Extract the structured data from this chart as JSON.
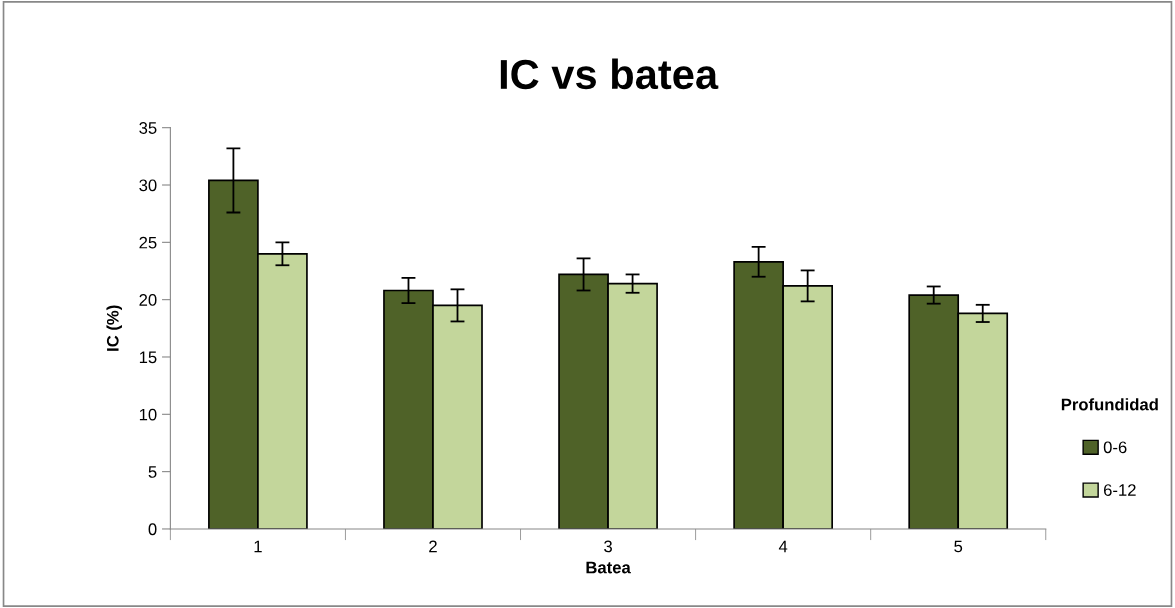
{
  "chart_data": {
    "type": "bar",
    "title": "IC vs batea",
    "xlabel": "Batea",
    "ylabel": "IC (%)",
    "categories": [
      "1",
      "2",
      "3",
      "4",
      "5"
    ],
    "series": [
      {
        "name": "0-6",
        "color": "#4f6228",
        "values": [
          30.4,
          20.8,
          22.2,
          23.3,
          20.4
        ],
        "errors": [
          2.8,
          1.1,
          1.4,
          1.3,
          0.75
        ]
      },
      {
        "name": "6-12",
        "color": "#c3d69b",
        "values": [
          24.0,
          19.5,
          21.4,
          21.2,
          18.8
        ],
        "errors": [
          1.0,
          1.4,
          0.8,
          1.35,
          0.75
        ]
      }
    ],
    "legend_title": "Profundidad",
    "legend": "right",
    "ylim": [
      0,
      35
    ],
    "yticks": [
      0,
      5,
      10,
      15,
      20,
      25,
      30,
      35
    ],
    "grid": false
  }
}
